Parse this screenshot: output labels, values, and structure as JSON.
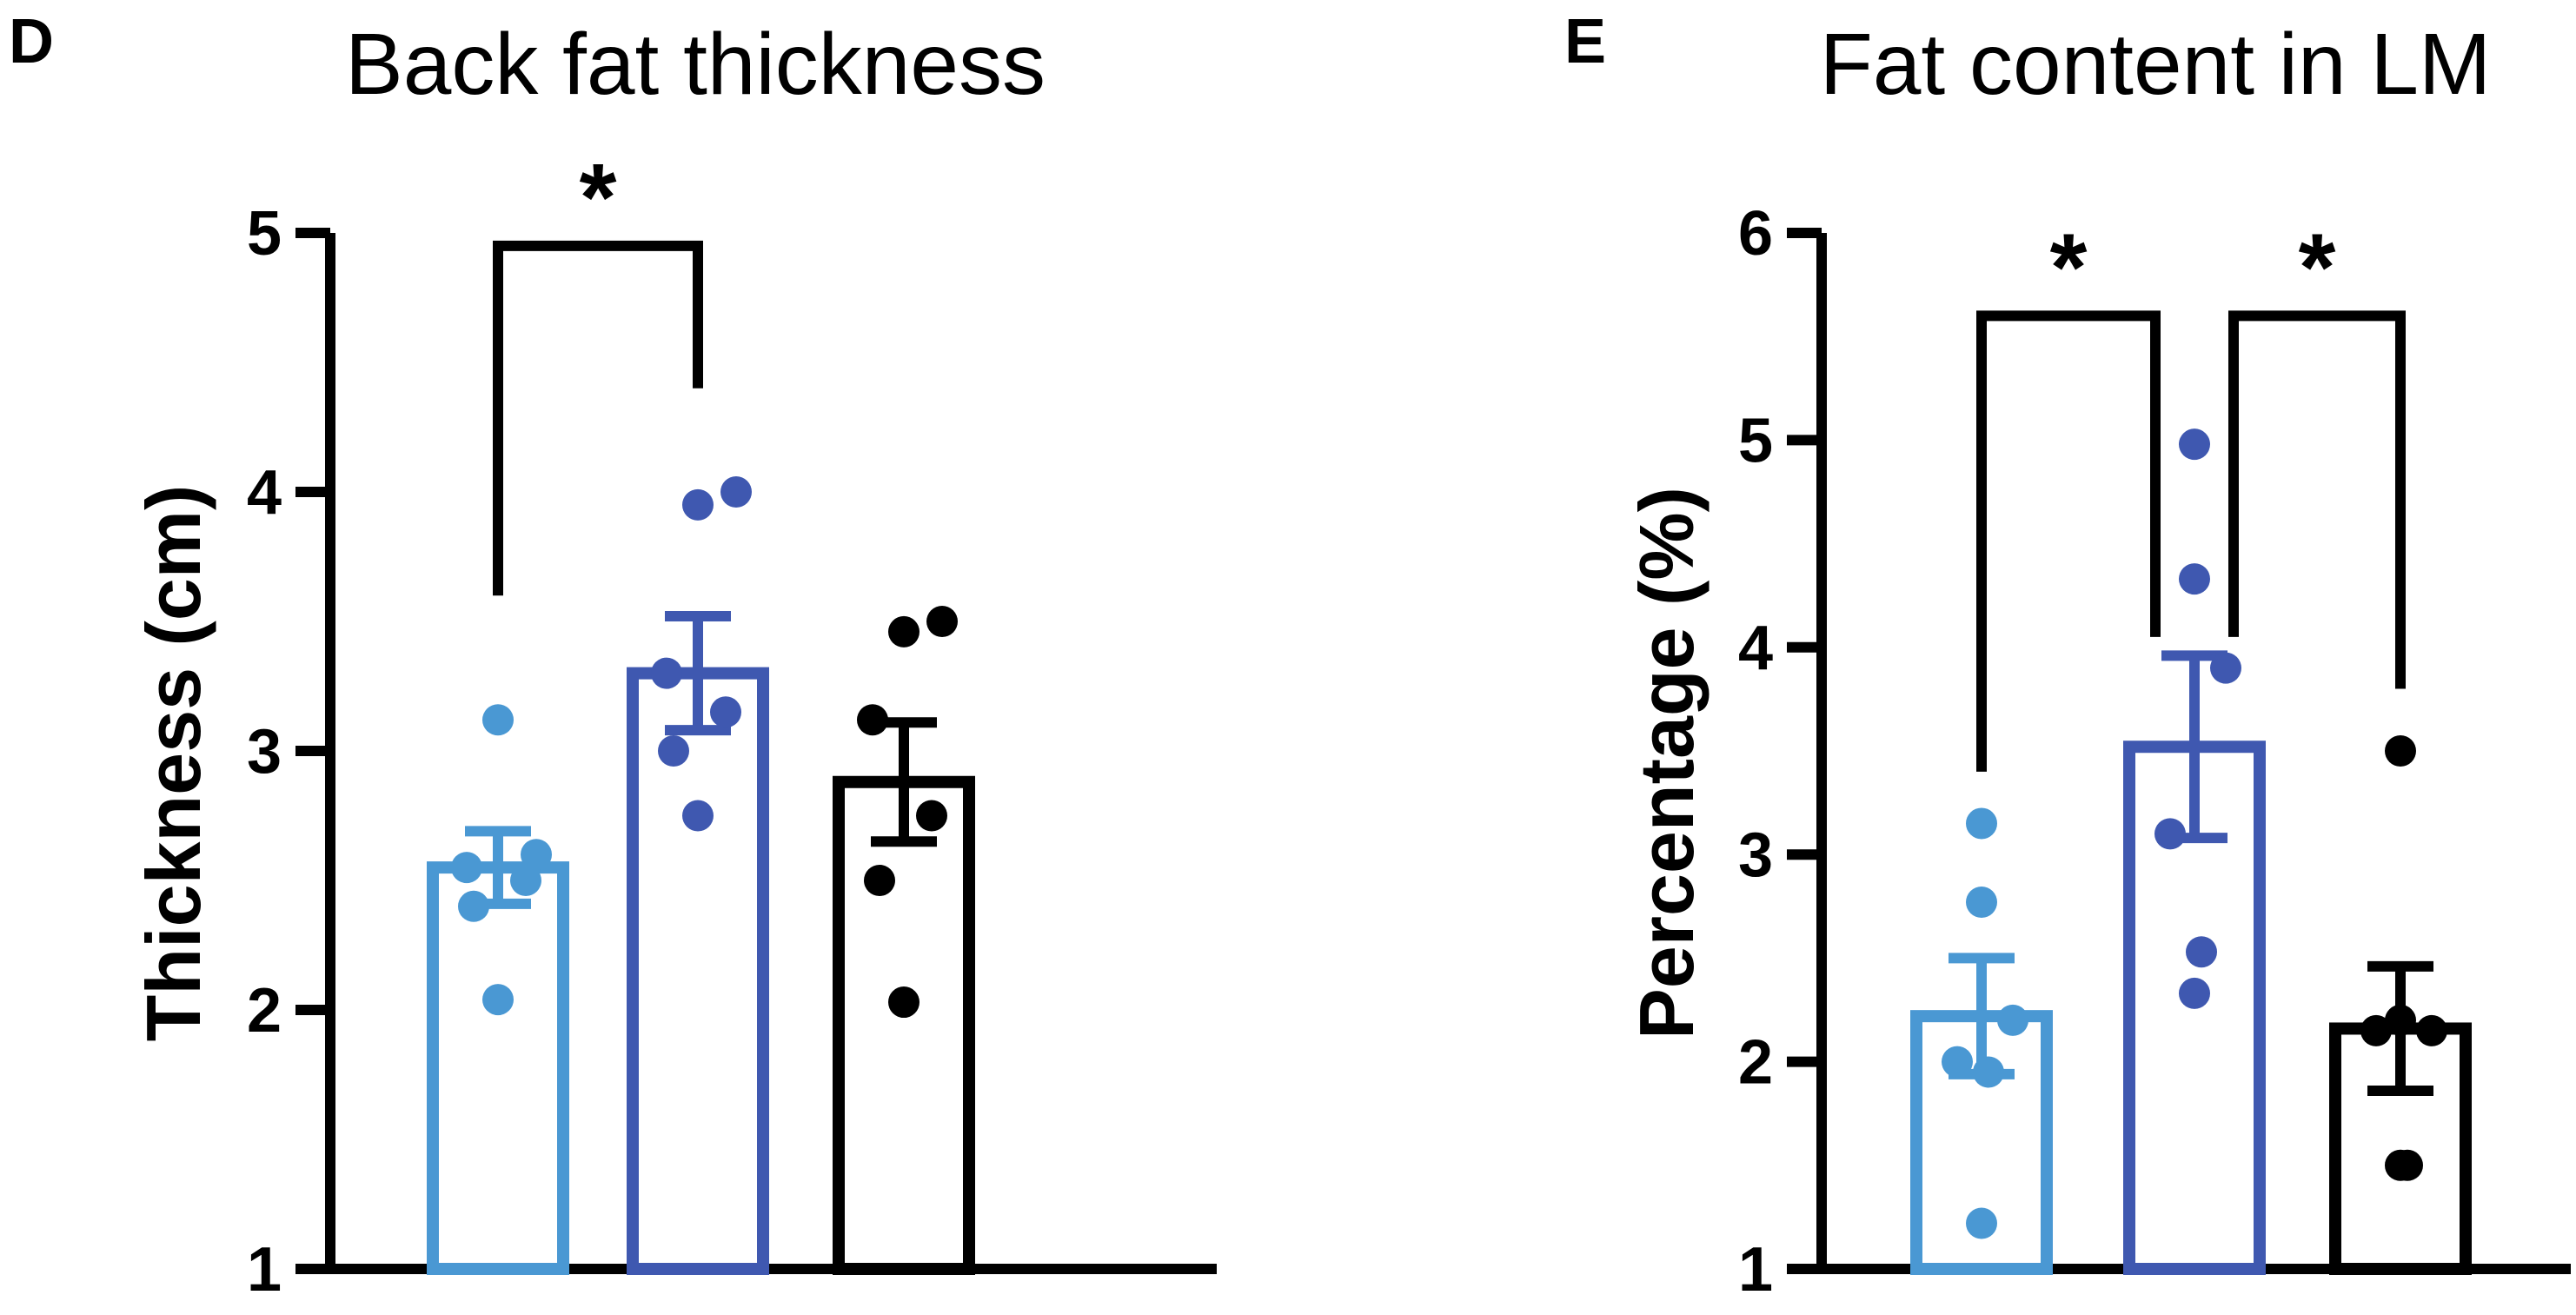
{
  "chart_data": [
    {
      "type": "bar",
      "panel_label": "D",
      "title": "Back fat thickness",
      "xlabel": "",
      "ylabel": "Thickness (cm)",
      "ylim": [
        1,
        5
      ],
      "yticks": [
        "1",
        "2",
        "3",
        "4",
        "5"
      ],
      "grid": false,
      "series": [
        {
          "color": "#4A98D3",
          "mean": 2.55,
          "sem": 0.14,
          "points": [
            3.12,
            2.6,
            2.55,
            2.5,
            2.4,
            2.04
          ]
        },
        {
          "color": "#3F58B0",
          "mean": 3.3,
          "sem": 0.22,
          "points": [
            3.95,
            4.0,
            3.3,
            3.15,
            3.0,
            2.75
          ]
        },
        {
          "color": "#000000",
          "mean": 2.88,
          "sem": 0.23,
          "points": [
            3.46,
            3.5,
            3.12,
            2.75,
            2.5,
            2.03
          ]
        }
      ],
      "significance": [
        {
          "from": 0,
          "to": 1,
          "label": "*",
          "y_data": 4.95
        }
      ]
    },
    {
      "type": "bar",
      "panel_label": "E",
      "title": "Fat content in LM",
      "xlabel": "",
      "ylabel": "Percentage (%)",
      "ylim": [
        1,
        6
      ],
      "yticks": [
        "1",
        "2",
        "3",
        "4",
        "5",
        "6"
      ],
      "grid": false,
      "series": [
        {
          "color": "#4A98D3",
          "mean": 2.22,
          "sem": 0.28,
          "points": [
            3.15,
            2.77,
            2.2,
            2.0,
            1.95,
            1.22
          ]
        },
        {
          "color": "#3F58B0",
          "mean": 3.52,
          "sem": 0.44,
          "points": [
            4.98,
            4.33,
            3.9,
            3.1,
            2.53,
            2.33
          ]
        },
        {
          "color": "#000000",
          "mean": 2.16,
          "sem": 0.3,
          "points": [
            3.5,
            2.2,
            2.15,
            2.15,
            1.5,
            1.5
          ]
        }
      ],
      "significance": [
        {
          "from": 0,
          "to": 1,
          "label": "*",
          "y_data": 5.6
        },
        {
          "from": 1,
          "to": 2,
          "label": "*",
          "y_data": 5.6
        }
      ]
    }
  ]
}
